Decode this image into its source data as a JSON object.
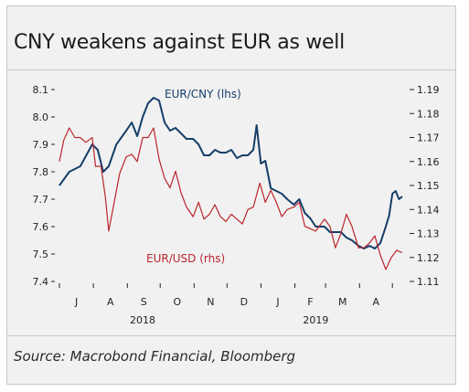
{
  "title": "CNY weakens against EUR as well",
  "source": "Source: Macrobond Financial, Bloomberg",
  "colors": {
    "eur_cny": "#153e68",
    "eur_usd": "#b9262c",
    "axis": "#222222",
    "background": "#f1f1f1"
  },
  "chart_data": {
    "type": "line",
    "title": "CNY weakens against EUR as well",
    "x_months": [
      "J",
      "A",
      "S",
      "O",
      "N",
      "D",
      "J",
      "F",
      "M",
      "A"
    ],
    "x_years": [
      "2018",
      "2019"
    ],
    "left_axis": {
      "ylim": [
        7.4,
        8.1
      ],
      "ticks": [
        "8.1",
        "8.0",
        "7.9",
        "7.8",
        "7.7",
        "7.6",
        "7.5",
        "7.4"
      ]
    },
    "right_axis": {
      "ylim": [
        1.11,
        1.19
      ],
      "ticks": [
        "1.19",
        "1.18",
        "1.17",
        "1.16",
        "1.15",
        "1.14",
        "1.13",
        "1.12",
        "1.11"
      ]
    },
    "series": [
      {
        "name": "EUR/CNY (lhs)",
        "axis": "left",
        "x": [
          "2018-07-01",
          "2018-07-10",
          "2018-07-20",
          "2018-07-31",
          "2018-08-05",
          "2018-08-10",
          "2018-08-15",
          "2018-08-22",
          "2018-08-31",
          "2018-09-05",
          "2018-09-10",
          "2018-09-15",
          "2018-09-20",
          "2018-09-25",
          "2018-09-30",
          "2018-10-05",
          "2018-10-10",
          "2018-10-15",
          "2018-10-20",
          "2018-10-25",
          "2018-10-31",
          "2018-11-05",
          "2018-11-10",
          "2018-11-15",
          "2018-11-20",
          "2018-11-25",
          "2018-11-30",
          "2018-12-05",
          "2018-12-10",
          "2018-12-15",
          "2018-12-20",
          "2018-12-25",
          "2018-12-28",
          "2019-01-01",
          "2019-01-05",
          "2019-01-10",
          "2019-01-15",
          "2019-01-20",
          "2019-01-25",
          "2019-01-31",
          "2019-02-05",
          "2019-02-10",
          "2019-02-15",
          "2019-02-20",
          "2019-02-28",
          "2019-03-05",
          "2019-03-10",
          "2019-03-15",
          "2019-03-20",
          "2019-03-25",
          "2019-03-31",
          "2019-04-05",
          "2019-04-10",
          "2019-04-15",
          "2019-04-20",
          "2019-04-25",
          "2019-04-28",
          "2019-05-01",
          "2019-05-04",
          "2019-05-07",
          "2019-05-10"
        ],
        "y": [
          7.75,
          7.8,
          7.82,
          7.9,
          7.88,
          7.8,
          7.82,
          7.9,
          7.95,
          7.98,
          7.93,
          8.0,
          8.05,
          8.07,
          8.06,
          7.98,
          7.95,
          7.96,
          7.94,
          7.92,
          7.92,
          7.9,
          7.86,
          7.86,
          7.88,
          7.87,
          7.87,
          7.88,
          7.85,
          7.86,
          7.86,
          7.88,
          7.97,
          7.83,
          7.84,
          7.74,
          7.73,
          7.72,
          7.7,
          7.68,
          7.7,
          7.65,
          7.63,
          7.6,
          7.6,
          7.58,
          7.58,
          7.58,
          7.56,
          7.55,
          7.53,
          7.52,
          7.53,
          7.52,
          7.54,
          7.6,
          7.64,
          7.72,
          7.73,
          7.7,
          7.71
        ]
      },
      {
        "name": "EUR/USD (rhs)",
        "axis": "right",
        "x": [
          "2018-07-01",
          "2018-07-05",
          "2018-07-10",
          "2018-07-15",
          "2018-07-20",
          "2018-07-25",
          "2018-07-31",
          "2018-08-03",
          "2018-08-08",
          "2018-08-12",
          "2018-08-15",
          "2018-08-20",
          "2018-08-25",
          "2018-08-31",
          "2018-09-05",
          "2018-09-10",
          "2018-09-15",
          "2018-09-20",
          "2018-09-25",
          "2018-09-30",
          "2018-10-05",
          "2018-10-10",
          "2018-10-15",
          "2018-10-20",
          "2018-10-25",
          "2018-10-31",
          "2018-11-05",
          "2018-11-10",
          "2018-11-15",
          "2018-11-20",
          "2018-11-25",
          "2018-11-30",
          "2018-12-05",
          "2018-12-10",
          "2018-12-15",
          "2018-12-20",
          "2018-12-25",
          "2018-12-31",
          "2019-01-05",
          "2019-01-10",
          "2019-01-15",
          "2019-01-20",
          "2019-01-25",
          "2019-01-31",
          "2019-02-05",
          "2019-02-10",
          "2019-02-15",
          "2019-02-20",
          "2019-02-28",
          "2019-03-05",
          "2019-03-10",
          "2019-03-15",
          "2019-03-20",
          "2019-03-25",
          "2019-03-31",
          "2019-04-05",
          "2019-04-10",
          "2019-04-15",
          "2019-04-20",
          "2019-04-25",
          "2019-04-30",
          "2019-05-05",
          "2019-05-10"
        ],
        "y": [
          1.16,
          1.169,
          1.174,
          1.17,
          1.17,
          1.168,
          1.17,
          1.158,
          1.158,
          1.145,
          1.131,
          1.143,
          1.155,
          1.162,
          1.163,
          1.16,
          1.17,
          1.17,
          1.174,
          1.161,
          1.153,
          1.149,
          1.156,
          1.147,
          1.141,
          1.137,
          1.143,
          1.136,
          1.138,
          1.142,
          1.137,
          1.135,
          1.138,
          1.136,
          1.134,
          1.14,
          1.141,
          1.151,
          1.143,
          1.148,
          1.143,
          1.137,
          1.14,
          1.141,
          1.143,
          1.133,
          1.132,
          1.131,
          1.136,
          1.133,
          1.124,
          1.13,
          1.138,
          1.133,
          1.124,
          1.124,
          1.126,
          1.129,
          1.121,
          1.115,
          1.12,
          1.123,
          1.122
        ]
      }
    ],
    "annotations": [
      "EUR/CNY (lhs)",
      "EUR/USD (rhs)"
    ],
    "grid": false
  }
}
